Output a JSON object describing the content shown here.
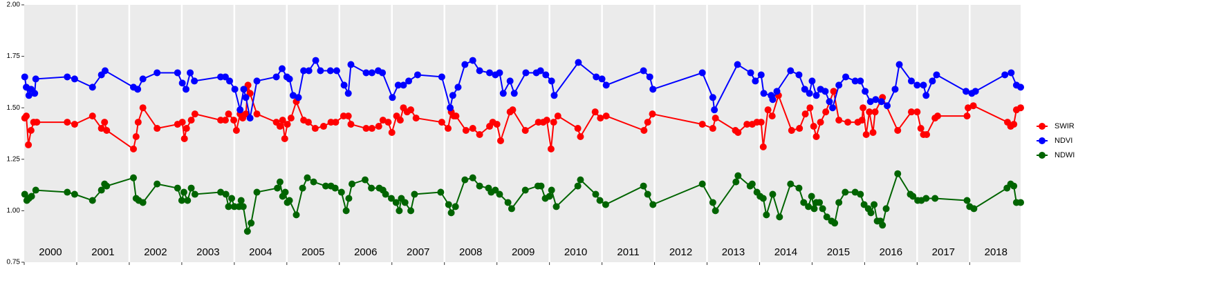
{
  "chart_data": {
    "type": "line",
    "xlim": [
      2000,
      2018.97
    ],
    "xticks": [
      {
        "value": 2000.5,
        "label": "2000"
      },
      {
        "value": 2001.5,
        "label": "2001"
      },
      {
        "value": 2002.5,
        "label": "2002"
      },
      {
        "value": 2003.5,
        "label": "2003"
      },
      {
        "value": 2004.5,
        "label": "2004"
      },
      {
        "value": 2005.5,
        "label": "2005"
      },
      {
        "value": 2006.5,
        "label": "2006"
      },
      {
        "value": 2007.5,
        "label": "2007"
      },
      {
        "value": 2008.5,
        "label": "2008"
      },
      {
        "value": 2009.5,
        "label": "2009"
      },
      {
        "value": 2010.5,
        "label": "2010"
      },
      {
        "value": 2011.5,
        "label": "2011"
      },
      {
        "value": 2012.5,
        "label": "2012"
      },
      {
        "value": 2013.5,
        "label": "2013"
      },
      {
        "value": 2014.5,
        "label": "2014"
      },
      {
        "value": 2015.5,
        "label": "2015"
      },
      {
        "value": 2016.5,
        "label": "2016"
      },
      {
        "value": 2017.5,
        "label": "2017"
      },
      {
        "value": 2018.5,
        "label": "2018"
      }
    ],
    "ylim": [
      0.75,
      2.0
    ],
    "yticks": [
      0.75,
      {
        "value": 1.0,
        "label": "1.00"
      },
      1.25,
      {
        "value": 1.5,
        "label": "1.50"
      },
      1.75,
      {
        "value": 2.0,
        "label": "2.00"
      }
    ],
    "xgrid": true,
    "legend": "right",
    "series": [
      {
        "name": "SWIR",
        "color": "#ff0000",
        "x": [
          2000.01,
          2000.04,
          2000.08,
          2000.13,
          2000.18,
          2000.24,
          2000.82,
          2000.96,
          2001.3,
          2001.47,
          2001.53,
          2001.57,
          2002.08,
          2002.13,
          2002.17,
          2002.26,
          2002.53,
          2002.92,
          2003.01,
          2003.05,
          2003.09,
          2003.18,
          2003.25,
          2003.74,
          2003.83,
          2003.89,
          2003.99,
          2004.04,
          2004.11,
          2004.16,
          2004.22,
          2004.26,
          2004.3,
          2004.43,
          2004.8,
          2004.87,
          2004.92,
          2004.96,
          2005.01,
          2005.08,
          2005.18,
          2005.32,
          2005.41,
          2005.54,
          2005.7,
          2005.84,
          2005.93,
          2006.08,
          2006.17,
          2006.22,
          2006.51,
          2006.62,
          2006.75,
          2006.83,
          2006.93,
          2007.0,
          2007.09,
          2007.16,
          2007.22,
          2007.29,
          2007.36,
          2007.46,
          2007.95,
          2008.07,
          2008.13,
          2008.18,
          2008.22,
          2008.41,
          2008.54,
          2008.67,
          2008.86,
          2008.92,
          2009.0,
          2009.07,
          2009.25,
          2009.3,
          2009.54,
          2009.79,
          2009.88,
          2009.95,
          2010.03,
          2010.08,
          2010.16,
          2010.54,
          2010.59,
          2010.87,
          2010.97,
          2011.08,
          2011.8,
          2011.87,
          2011.96,
          2012.91,
          2013.11,
          2013.16,
          2013.54,
          2013.59,
          2013.76,
          2013.86,
          2013.95,
          2014.03,
          2014.07,
          2014.16,
          2014.24,
          2014.36,
          2014.61,
          2014.76,
          2014.87,
          2014.96,
          2015.03,
          2015.08,
          2015.16,
          2015.26,
          2015.41,
          2015.51,
          2015.68,
          2015.87,
          2015.95,
          2015.97,
          2016.03,
          2016.09,
          2016.16,
          2016.2,
          2016.34,
          2016.63,
          2016.89,
          2017.0,
          2017.07,
          2017.12,
          2017.18,
          2017.34,
          2017.39,
          2017.95,
          2017.97,
          2018.07,
          2018.72,
          2018.78,
          2018.84,
          2018.89,
          2018.97
        ],
        "values": [
          1.45,
          1.46,
          1.32,
          1.39,
          1.43,
          1.43,
          1.43,
          1.42,
          1.46,
          1.4,
          1.43,
          1.39,
          1.3,
          1.36,
          1.43,
          1.5,
          1.4,
          1.42,
          1.43,
          1.35,
          1.4,
          1.44,
          1.47,
          1.44,
          1.44,
          1.47,
          1.44,
          1.39,
          1.47,
          1.45,
          1.47,
          1.61,
          1.57,
          1.47,
          1.43,
          1.41,
          1.44,
          1.35,
          1.42,
          1.45,
          1.53,
          1.44,
          1.43,
          1.4,
          1.41,
          1.43,
          1.43,
          1.46,
          1.46,
          1.42,
          1.4,
          1.4,
          1.41,
          1.44,
          1.43,
          1.38,
          1.46,
          1.44,
          1.5,
          1.48,
          1.49,
          1.45,
          1.43,
          1.4,
          1.48,
          1.46,
          1.46,
          1.39,
          1.4,
          1.37,
          1.41,
          1.43,
          1.42,
          1.34,
          1.48,
          1.49,
          1.39,
          1.43,
          1.43,
          1.44,
          1.3,
          1.43,
          1.46,
          1.4,
          1.36,
          1.48,
          1.45,
          1.46,
          1.39,
          1.43,
          1.47,
          1.42,
          1.4,
          1.45,
          1.39,
          1.38,
          1.42,
          1.42,
          1.43,
          1.43,
          1.31,
          1.49,
          1.46,
          1.56,
          1.39,
          1.4,
          1.47,
          1.5,
          1.41,
          1.36,
          1.43,
          1.48,
          1.58,
          1.44,
          1.43,
          1.43,
          1.44,
          1.5,
          1.37,
          1.48,
          1.38,
          1.48,
          1.55,
          1.39,
          1.48,
          1.48,
          1.4,
          1.37,
          1.37,
          1.45,
          1.46,
          1.46,
          1.5,
          1.51,
          1.43,
          1.41,
          1.42,
          1.49,
          1.5
        ]
      },
      {
        "name": "NDVI",
        "color": "#0000ff",
        "x": [
          2000.01,
          2000.04,
          2000.09,
          2000.13,
          2000.2,
          2000.22,
          2000.82,
          2000.96,
          2001.3,
          2001.47,
          2001.54,
          2002.08,
          2002.16,
          2002.26,
          2002.53,
          2002.92,
          2003.01,
          2003.08,
          2003.16,
          2003.24,
          2003.74,
          2003.83,
          2003.91,
          2004.01,
          2004.11,
          2004.18,
          2004.22,
          2004.3,
          2004.43,
          2004.8,
          2004.91,
          2005.0,
          2005.05,
          2005.12,
          2005.22,
          2005.32,
          2005.42,
          2005.55,
          2005.64,
          2005.83,
          2005.95,
          2006.09,
          2006.17,
          2006.22,
          2006.51,
          2006.62,
          2006.74,
          2006.82,
          2007.01,
          2007.12,
          2007.22,
          2007.32,
          2007.49,
          2007.95,
          2008.11,
          2008.16,
          2008.26,
          2008.39,
          2008.54,
          2008.67,
          2008.86,
          2008.97,
          2009.05,
          2009.12,
          2009.25,
          2009.33,
          2009.55,
          2009.75,
          2009.83,
          2009.93,
          2010.04,
          2010.09,
          2010.55,
          2010.89,
          2011.0,
          2011.08,
          2011.79,
          2011.91,
          2011.97,
          2012.91,
          2013.11,
          2013.14,
          2013.58,
          2013.83,
          2013.92,
          2014.03,
          2014.08,
          2014.22,
          2014.25,
          2014.33,
          2014.59,
          2014.75,
          2014.86,
          2014.95,
          2015.0,
          2015.08,
          2015.16,
          2015.25,
          2015.33,
          2015.39,
          2015.51,
          2015.64,
          2015.82,
          2015.92,
          2016.01,
          2016.11,
          2016.21,
          2016.32,
          2016.43,
          2016.58,
          2016.66,
          2016.89,
          2017.0,
          2017.12,
          2017.17,
          2017.29,
          2017.37,
          2017.93,
          2018.04,
          2018.11,
          2018.67,
          2018.79,
          2018.89,
          2018.97
        ],
        "values": [
          1.65,
          1.6,
          1.56,
          1.59,
          1.57,
          1.64,
          1.65,
          1.64,
          1.6,
          1.66,
          1.68,
          1.6,
          1.59,
          1.64,
          1.67,
          1.67,
          1.62,
          1.59,
          1.67,
          1.63,
          1.65,
          1.65,
          1.63,
          1.59,
          1.49,
          1.59,
          1.55,
          1.45,
          1.63,
          1.65,
          1.69,
          1.65,
          1.64,
          1.56,
          1.55,
          1.68,
          1.68,
          1.73,
          1.68,
          1.68,
          1.68,
          1.61,
          1.57,
          1.71,
          1.67,
          1.67,
          1.68,
          1.67,
          1.55,
          1.61,
          1.61,
          1.63,
          1.66,
          1.65,
          1.5,
          1.56,
          1.6,
          1.71,
          1.73,
          1.68,
          1.67,
          1.66,
          1.67,
          1.57,
          1.63,
          1.57,
          1.67,
          1.67,
          1.68,
          1.66,
          1.63,
          1.56,
          1.72,
          1.65,
          1.64,
          1.61,
          1.68,
          1.65,
          1.59,
          1.67,
          1.55,
          1.49,
          1.71,
          1.67,
          1.63,
          1.66,
          1.57,
          1.56,
          1.54,
          1.58,
          1.68,
          1.66,
          1.59,
          1.57,
          1.63,
          1.56,
          1.59,
          1.58,
          1.53,
          1.5,
          1.61,
          1.65,
          1.63,
          1.63,
          1.58,
          1.53,
          1.54,
          1.53,
          1.51,
          1.59,
          1.71,
          1.63,
          1.61,
          1.61,
          1.56,
          1.63,
          1.66,
          1.58,
          1.57,
          1.58,
          1.66,
          1.67,
          1.61,
          1.6
        ]
      },
      {
        "name": "NDWI",
        "color": "#006400",
        "x": [
          2000.01,
          2000.05,
          2000.09,
          2000.14,
          2000.22,
          2000.82,
          2000.96,
          2001.3,
          2001.47,
          2001.53,
          2001.57,
          2002.08,
          2002.13,
          2002.18,
          2002.26,
          2002.53,
          2002.92,
          2003.0,
          2003.04,
          2003.11,
          2003.18,
          2003.25,
          2003.74,
          2003.84,
          2003.89,
          2003.95,
          2004.0,
          2004.09,
          2004.13,
          2004.17,
          2004.25,
          2004.32,
          2004.43,
          2004.82,
          2004.87,
          2004.92,
          2004.97,
          2005.01,
          2005.05,
          2005.18,
          2005.3,
          2005.39,
          2005.51,
          2005.74,
          2005.84,
          2005.92,
          2006.04,
          2006.13,
          2006.18,
          2006.24,
          2006.49,
          2006.61,
          2006.76,
          2006.83,
          2006.88,
          2006.99,
          2007.08,
          2007.14,
          2007.18,
          2007.25,
          2007.36,
          2007.43,
          2007.93,
          2008.08,
          2008.13,
          2008.21,
          2008.39,
          2008.54,
          2008.67,
          2008.84,
          2008.89,
          2008.97,
          2009.05,
          2009.21,
          2009.28,
          2009.54,
          2009.78,
          2009.84,
          2009.92,
          2010.0,
          2010.04,
          2010.13,
          2010.54,
          2010.59,
          2010.88,
          2010.96,
          2011.07,
          2011.79,
          2011.87,
          2011.97,
          2012.91,
          2013.11,
          2013.16,
          2013.55,
          2013.59,
          2013.82,
          2013.86,
          2013.95,
          2014.01,
          2014.07,
          2014.13,
          2014.25,
          2014.38,
          2014.59,
          2014.75,
          2014.84,
          2014.93,
          2014.99,
          2015.04,
          2015.08,
          2015.14,
          2015.2,
          2015.28,
          2015.37,
          2015.43,
          2015.51,
          2015.63,
          2015.82,
          2015.92,
          2015.99,
          2016.07,
          2016.12,
          2016.18,
          2016.24,
          2016.3,
          2016.34,
          2016.41,
          2016.63,
          2016.87,
          2016.92,
          2017.01,
          2017.08,
          2017.17,
          2017.34,
          2017.95,
          2018.0,
          2018.08,
          2018.71,
          2018.78,
          2018.84,
          2018.89,
          2018.97
        ],
        "values": [
          1.08,
          1.05,
          1.06,
          1.07,
          1.1,
          1.09,
          1.08,
          1.05,
          1.1,
          1.13,
          1.12,
          1.16,
          1.06,
          1.05,
          1.04,
          1.13,
          1.11,
          1.05,
          1.09,
          1.05,
          1.11,
          1.08,
          1.09,
          1.08,
          1.02,
          1.06,
          1.02,
          1.02,
          1.05,
          1.02,
          0.9,
          0.94,
          1.09,
          1.11,
          1.14,
          1.07,
          1.09,
          1.04,
          1.05,
          0.98,
          1.11,
          1.16,
          1.14,
          1.12,
          1.12,
          1.11,
          1.09,
          1.0,
          1.06,
          1.13,
          1.15,
          1.11,
          1.11,
          1.1,
          1.08,
          1.06,
          1.04,
          1.0,
          1.06,
          1.04,
          1.0,
          1.08,
          1.09,
          1.03,
          0.99,
          1.02,
          1.15,
          1.16,
          1.12,
          1.11,
          1.09,
          1.1,
          1.08,
          1.04,
          1.01,
          1.1,
          1.12,
          1.12,
          1.06,
          1.07,
          1.1,
          1.02,
          1.12,
          1.15,
          1.08,
          1.05,
          1.03,
          1.12,
          1.08,
          1.03,
          1.13,
          1.04,
          1.0,
          1.14,
          1.17,
          1.12,
          1.13,
          1.09,
          1.07,
          1.06,
          0.98,
          1.08,
          0.97,
          1.13,
          1.11,
          1.04,
          1.02,
          1.07,
          1.01,
          1.04,
          1.04,
          1.01,
          0.97,
          0.95,
          0.94,
          1.04,
          1.09,
          1.09,
          1.08,
          1.03,
          1.01,
          0.99,
          1.03,
          0.95,
          0.95,
          0.93,
          1.01,
          1.18,
          1.08,
          1.07,
          1.05,
          1.05,
          1.06,
          1.06,
          1.05,
          1.02,
          1.01,
          1.11,
          1.13,
          1.12,
          1.04,
          1.04
        ]
      }
    ]
  }
}
